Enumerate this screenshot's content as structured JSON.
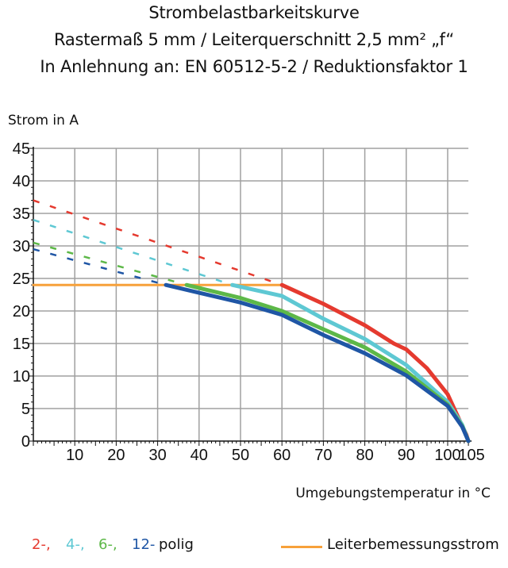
{
  "chart_data": {
    "type": "line",
    "title": [
      "Strombelastbarkeitskurve",
      "Rastermaß 5 mm / Leiterquerschnitt 2,5 mm² „f“",
      "In Anlehnung an: EN 60512-5-2 / Reduktionsfaktor 1"
    ],
    "xlabel": "Umgebungstemperatur in °C",
    "ylabel": "Strom in A",
    "xlim": [
      0,
      105
    ],
    "ylim": [
      0,
      45
    ],
    "xticks": [
      10,
      20,
      30,
      40,
      50,
      60,
      70,
      80,
      90,
      100,
      105
    ],
    "yticks": [
      0,
      5,
      10,
      15,
      20,
      25,
      30,
      35,
      40,
      45
    ],
    "grid": true,
    "series": [
      {
        "name": "2-",
        "color": "#e53a2f",
        "dashed": [
          [
            0,
            37
          ],
          [
            60,
            24
          ]
        ],
        "solid": [
          [
            60,
            24
          ],
          [
            70,
            21.1
          ],
          [
            80,
            17.8
          ],
          [
            87,
            15
          ],
          [
            90,
            14.1
          ],
          [
            95,
            11.2
          ],
          [
            100,
            7.2
          ],
          [
            103,
            3
          ],
          [
            104.5,
            1
          ],
          [
            105,
            0
          ]
        ]
      },
      {
        "name": "4-",
        "color": "#5ec8d3",
        "dashed": [
          [
            0,
            34
          ],
          [
            48,
            24
          ]
        ],
        "solid": [
          [
            48,
            24
          ],
          [
            60,
            22.3
          ],
          [
            70,
            18.8
          ],
          [
            80,
            15.7
          ],
          [
            90,
            11.7
          ],
          [
            100,
            6
          ],
          [
            103.5,
            2.5
          ],
          [
            105,
            0
          ]
        ]
      },
      {
        "name": "6-",
        "color": "#5db848",
        "dashed": [
          [
            0,
            30.5
          ],
          [
            37,
            24
          ]
        ],
        "solid": [
          [
            37,
            24
          ],
          [
            50,
            22
          ],
          [
            60,
            20
          ],
          [
            70,
            17.2
          ],
          [
            80,
            14.4
          ],
          [
            90,
            10.7
          ],
          [
            100,
            5.6
          ],
          [
            103.5,
            2.3
          ],
          [
            105,
            0
          ]
        ]
      },
      {
        "name": "12-",
        "color": "#1f56a5",
        "dashed": [
          [
            0,
            29.5
          ],
          [
            32,
            24
          ]
        ],
        "solid": [
          [
            32,
            24
          ],
          [
            50,
            21.3
          ],
          [
            60,
            19.4
          ],
          [
            70,
            16.3
          ],
          [
            80,
            13.5
          ],
          [
            90,
            10.1
          ],
          [
            100,
            5.4
          ],
          [
            103.5,
            2.2
          ],
          [
            105,
            0
          ]
        ]
      },
      {
        "name": "Leiterbemessungsstrom",
        "color": "#f7a13a",
        "solid": [
          [
            0,
            24
          ],
          [
            60,
            24
          ]
        ]
      }
    ],
    "legend": {
      "suffix": "polig",
      "items": [
        "2-,",
        "4-,",
        "6-,",
        "12-"
      ],
      "rated_label": "Leiterbemessungsstrom",
      "placement": "bottom"
    }
  }
}
